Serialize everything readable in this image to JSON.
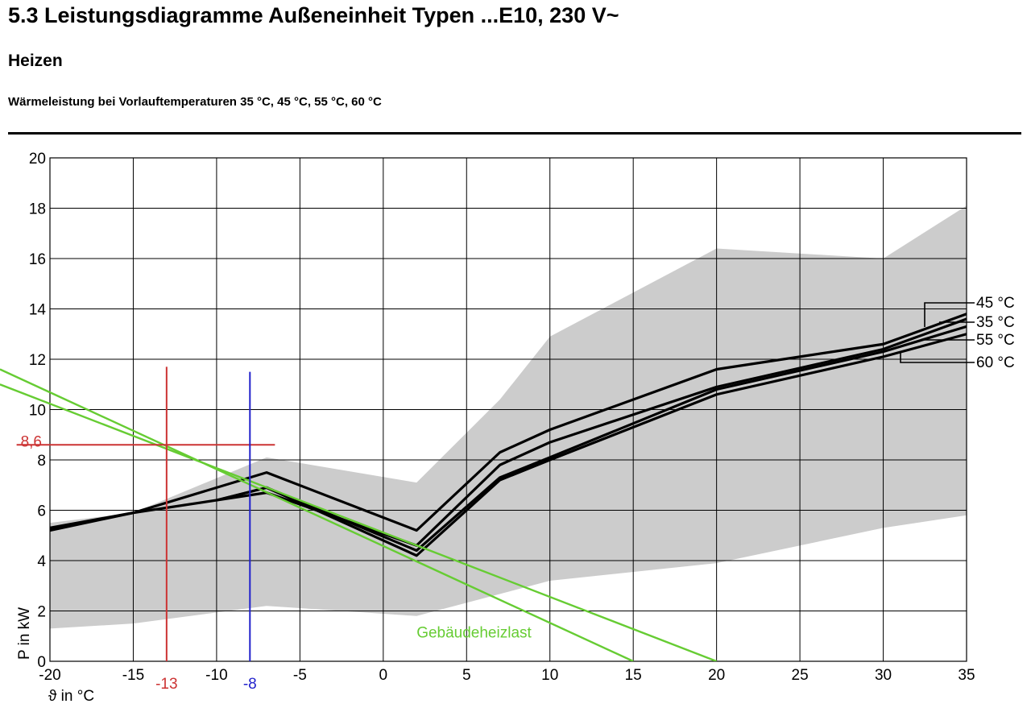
{
  "page": {
    "heading": "5.3 Leistungsdiagramme Außeneinheit Typen ...E10, 230 V~",
    "subheading": "Heizen",
    "caption": "Wärmeleistung bei Vorlauftemperaturen 35 °C, 45 °C, 55 °C, 60 °C"
  },
  "chart_data": {
    "type": "line",
    "title": "",
    "xlabel": "ϑ in °C",
    "ylabel": "P in kW",
    "xlim": [
      -20,
      35
    ],
    "ylim": [
      0,
      20
    ],
    "grid": true,
    "xticks": [
      -20,
      -15,
      -10,
      -5,
      0,
      5,
      10,
      15,
      20,
      25,
      30,
      35
    ],
    "xtick_labels": [
      "-20",
      "-15",
      "-10",
      "-5",
      "0",
      "5",
      "10",
      "15",
      "20",
      "25",
      "30",
      "35"
    ],
    "yticks": [
      0,
      2,
      4,
      6,
      8,
      10,
      12,
      14,
      16,
      18,
      20
    ],
    "ytick_labels": [
      "0",
      "2",
      "4",
      "6",
      "8",
      "10",
      "12",
      "14",
      "16",
      "18",
      "20"
    ],
    "band": {
      "color": "#cccccc",
      "upper": [
        [
          -20,
          5.5
        ],
        [
          -15,
          5.9
        ],
        [
          -7,
          8.1
        ],
        [
          2,
          7.1
        ],
        [
          7,
          10.4
        ],
        [
          10,
          12.9
        ],
        [
          20,
          16.4
        ],
        [
          30,
          16.0
        ],
        [
          35,
          18.1
        ]
      ],
      "lower": [
        [
          -20,
          1.3
        ],
        [
          -15,
          1.5
        ],
        [
          -7,
          2.2
        ],
        [
          2,
          1.8
        ],
        [
          10,
          3.2
        ],
        [
          20,
          3.9
        ],
        [
          30,
          5.3
        ],
        [
          35,
          5.8
        ]
      ]
    },
    "series": [
      {
        "name": "45 °C",
        "color": "#000000",
        "x": [
          -20,
          -15,
          -7,
          2,
          7,
          10,
          20,
          30,
          35
        ],
        "y": [
          5.3,
          5.9,
          7.5,
          5.2,
          8.3,
          9.2,
          11.6,
          12.6,
          13.8
        ]
      },
      {
        "name": "35 °C",
        "color": "#000000",
        "x": [
          -20,
          -15,
          -7,
          2,
          7,
          10,
          20,
          30,
          35
        ],
        "y": [
          5.2,
          5.9,
          6.7,
          4.6,
          7.8,
          8.7,
          10.9,
          12.4,
          13.6
        ]
      },
      {
        "name": "55 °C",
        "color": "#000000",
        "x": [
          -10,
          -7,
          2,
          7,
          10,
          20,
          30,
          35
        ],
        "y": [
          6.4,
          6.9,
          4.4,
          7.3,
          8.1,
          10.8,
          12.3,
          13.3
        ]
      },
      {
        "name": "60 °C",
        "color": "#000000",
        "x": [
          -10,
          -7,
          2,
          7,
          10,
          20,
          30,
          35
        ],
        "y": [
          6.4,
          6.9,
          4.2,
          7.2,
          8.0,
          10.6,
          12.1,
          13.0
        ]
      }
    ],
    "legend_labels": [
      "45 °C",
      "35 °C",
      "55 °C",
      "60 °C"
    ],
    "legend_position": "right",
    "building_load": {
      "label": "Gebäudeheizlast",
      "color": "#66cc33",
      "lines": [
        {
          "x": [
            -23,
            15
          ],
          "y": [
            11.6,
            0
          ]
        },
        {
          "x": [
            -23,
            20
          ],
          "y": [
            11.0,
            0
          ]
        }
      ]
    },
    "annotations": [
      {
        "kind": "vline",
        "x": -13,
        "y_from": 0,
        "y_to": 11.7,
        "color": "#cc3333",
        "label": "-13"
      },
      {
        "kind": "hline",
        "y": 8.6,
        "x_from": -22,
        "x_to": -6.5,
        "color": "#cc3333",
        "label": "8,6"
      },
      {
        "kind": "vline",
        "x": -8,
        "y_from": 0,
        "y_to": 11.5,
        "color": "#2222cc",
        "label": "-8"
      }
    ]
  }
}
